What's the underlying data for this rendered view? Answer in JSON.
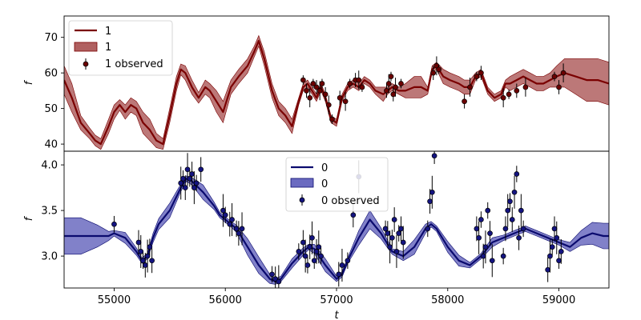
{
  "chart_data": [
    {
      "type": "line",
      "panel": "top",
      "xlabel": "",
      "ylabel": "f",
      "xlim": [
        54550,
        59450
      ],
      "ylim": [
        38,
        76
      ],
      "x_tick_labels_shown": false,
      "y_ticks": [
        40,
        50,
        60,
        70
      ],
      "y_tick_labels": [
        "40",
        "50",
        "60",
        "70"
      ],
      "grid": false,
      "legend_position": "top-left",
      "legend": {
        "line": "1",
        "band": "1",
        "observed": "1 observed"
      },
      "colors": {
        "line": "#7a0000",
        "band": "#b06060",
        "points": "#6b0000"
      },
      "series": [
        {
          "name": "1",
          "role": "model",
          "x": [
            54550,
            54620,
            54700,
            54780,
            54830,
            54880,
            54950,
            55000,
            55050,
            55100,
            55150,
            55200,
            55260,
            55320,
            55380,
            55440,
            55500,
            55560,
            55600,
            55640,
            55700,
            55760,
            55820,
            55860,
            55920,
            55980,
            56050,
            56120,
            56200,
            56260,
            56300,
            56350,
            56420,
            56480,
            56540,
            56600,
            56660,
            56700,
            56740,
            56780,
            56820,
            56860,
            56900,
            56950,
            57000,
            57050,
            57100,
            57150,
            57200,
            57250,
            57300,
            57350,
            57420,
            57460,
            57500,
            57560,
            57620,
            57700,
            57760,
            57820,
            57860,
            57900,
            57960,
            58020,
            58100,
            58150,
            58200,
            58250,
            58300,
            58360,
            58420,
            58480,
            58520,
            58560,
            58620,
            58680,
            58740,
            58800,
            58860,
            58920,
            58980,
            59050,
            59150,
            59250,
            59350,
            59450
          ],
          "y": [
            58,
            53,
            46,
            43,
            41,
            40,
            45,
            49,
            51,
            49,
            51,
            50,
            46,
            44,
            41,
            40,
            48,
            57,
            61,
            60,
            56,
            53,
            56,
            55,
            52,
            49,
            56,
            59,
            62,
            66,
            69,
            64,
            55,
            50,
            48,
            45,
            52,
            56,
            57,
            55,
            53,
            56,
            53,
            47,
            46,
            53,
            56,
            57,
            56,
            58,
            57,
            55,
            54,
            55,
            56,
            55,
            55,
            56,
            56,
            55,
            61,
            62,
            59,
            58,
            57,
            56,
            56,
            59,
            60,
            55,
            53,
            54,
            57,
            57,
            58,
            59,
            58,
            57,
            57,
            58,
            59,
            60,
            59,
            58,
            58,
            57
          ],
          "band_halfwidth": [
            4,
            4,
            2,
            1.5,
            1.5,
            1.5,
            2,
            2,
            1.5,
            2,
            2,
            2,
            3,
            3,
            2,
            1.5,
            2,
            2,
            1.5,
            2,
            2,
            1.5,
            2,
            2,
            3,
            3,
            2,
            2,
            2,
            1.5,
            1.5,
            2,
            2,
            2,
            2,
            2,
            1,
            1,
            1,
            1,
            1,
            1,
            1,
            1,
            1,
            1,
            1,
            1,
            1,
            1,
            1,
            1,
            2,
            1,
            1,
            1,
            2,
            3,
            3,
            1,
            1,
            1,
            2,
            2,
            2,
            2,
            2,
            1,
            1,
            1,
            1,
            1,
            1,
            2,
            2,
            2,
            2,
            2,
            2,
            2,
            3,
            4,
            5,
            6,
            6,
            6
          ]
        },
        {
          "name": "1 observed",
          "role": "observed",
          "x": [
            56700,
            56730,
            56760,
            56790,
            56820,
            56850,
            56870,
            56900,
            56930,
            56960,
            57030,
            57080,
            57120,
            57170,
            57200,
            57230,
            57450,
            57470,
            57490,
            57510,
            57530,
            57580,
            57870,
            57900,
            57920,
            58150,
            58200,
            58260,
            58300,
            58500,
            58550,
            58620,
            58700,
            58960,
            59000,
            59040
          ],
          "y": [
            58,
            55,
            53,
            57,
            56,
            55,
            57,
            54,
            51,
            47,
            53,
            52,
            57,
            58,
            58,
            56,
            55,
            57,
            59,
            54,
            56,
            57,
            60,
            62,
            61,
            52,
            56,
            59,
            60,
            53,
            54,
            55,
            56,
            59,
            56,
            60
          ]
        }
      ]
    },
    {
      "type": "line",
      "panel": "bottom",
      "xlabel": "t",
      "ylabel": "f",
      "xlim": [
        54550,
        59450
      ],
      "ylim": [
        2.65,
        4.15
      ],
      "x_ticks": [
        55000,
        56000,
        57000,
        58000,
        59000
      ],
      "x_tick_labels": [
        "55000",
        "56000",
        "57000",
        "58000",
        "59000"
      ],
      "y_ticks": [
        3.0,
        3.5,
        4.0
      ],
      "y_tick_labels": [
        "3.0",
        "3.5",
        "4.0"
      ],
      "grid": false,
      "legend_position": "top-center",
      "legend": {
        "line": "0",
        "band": "0",
        "observed": "0 observed"
      },
      "colors": {
        "line": "#0a0a6e",
        "band": "#6b6bc0",
        "points": "#141480"
      },
      "series": [
        {
          "name": "0",
          "role": "model",
          "x": [
            54550,
            54700,
            54850,
            54950,
            55000,
            55100,
            55200,
            55250,
            55300,
            55350,
            55400,
            55500,
            55600,
            55650,
            55700,
            55800,
            55900,
            55950,
            56000,
            56050,
            56100,
            56200,
            56300,
            56400,
            56450,
            56500,
            56600,
            56700,
            56750,
            56800,
            56900,
            57000,
            57050,
            57100,
            57200,
            57300,
            57400,
            57500,
            57600,
            57700,
            57800,
            57850,
            57900,
            58000,
            58100,
            58200,
            58300,
            58400,
            58500,
            58600,
            58700,
            58800,
            58900,
            59000,
            59100,
            59200,
            59300,
            59400,
            59450
          ],
          "y": [
            3.22,
            3.22,
            3.22,
            3.22,
            3.25,
            3.2,
            3.05,
            2.95,
            3.0,
            3.2,
            3.35,
            3.5,
            3.75,
            3.85,
            3.82,
            3.7,
            3.55,
            3.45,
            3.4,
            3.35,
            3.3,
            3.1,
            2.9,
            2.75,
            2.72,
            2.75,
            2.92,
            3.05,
            3.1,
            3.08,
            2.9,
            2.75,
            2.8,
            2.95,
            3.2,
            3.4,
            3.25,
            3.05,
            3.0,
            3.1,
            3.3,
            3.35,
            3.3,
            3.1,
            2.95,
            2.9,
            3.0,
            3.15,
            3.2,
            3.25,
            3.3,
            3.25,
            3.2,
            3.15,
            3.1,
            3.2,
            3.25,
            3.22,
            3.22
          ],
          "band_halfwidth": [
            0.2,
            0.2,
            0.12,
            0.05,
            0.03,
            0.06,
            0.04,
            0.03,
            0.03,
            0.05,
            0.06,
            0.08,
            0.04,
            0.03,
            0.04,
            0.08,
            0.04,
            0.03,
            0.03,
            0.03,
            0.04,
            0.09,
            0.09,
            0.05,
            0.03,
            0.03,
            0.05,
            0.04,
            0.03,
            0.05,
            0.07,
            0.03,
            0.03,
            0.03,
            0.08,
            0.1,
            0.06,
            0.03,
            0.05,
            0.08,
            0.05,
            0.03,
            0.03,
            0.06,
            0.06,
            0.03,
            0.03,
            0.05,
            0.03,
            0.03,
            0.03,
            0.03,
            0.03,
            0.03,
            0.05,
            0.08,
            0.12,
            0.14,
            0.14
          ]
        },
        {
          "name": "0 observed",
          "role": "observed",
          "x": [
            55000,
            55220,
            55240,
            55260,
            55280,
            55300,
            55320,
            55340,
            55600,
            55620,
            55640,
            55660,
            55680,
            55700,
            55720,
            55740,
            55780,
            55980,
            56000,
            56040,
            56060,
            56100,
            56120,
            56150,
            56420,
            56450,
            56480,
            56660,
            56700,
            56720,
            56740,
            56760,
            56780,
            56800,
            56820,
            56840,
            56860,
            57020,
            57050,
            57100,
            57150,
            57200,
            57440,
            57460,
            57480,
            57500,
            57520,
            57540,
            57560,
            57580,
            57600,
            57820,
            57840,
            57860,
            57880,
            58260,
            58280,
            58300,
            58320,
            58340,
            58360,
            58380,
            58400,
            58500,
            58520,
            58540,
            58560,
            58580,
            58600,
            58620,
            58640,
            58660,
            58680,
            58900,
            58920,
            58940,
            58960,
            58980,
            59000,
            59020
          ],
          "y": [
            3.35,
            3.15,
            3.05,
            2.95,
            2.9,
            3.0,
            3.1,
            2.95,
            3.8,
            3.85,
            3.75,
            3.95,
            3.85,
            3.9,
            3.75,
            3.8,
            3.95,
            3.5,
            3.45,
            3.35,
            3.4,
            3.3,
            3.25,
            3.3,
            2.8,
            2.75,
            2.72,
            3.05,
            3.15,
            3.0,
            2.9,
            3.1,
            3.2,
            2.95,
            3.05,
            3.1,
            3.0,
            2.8,
            2.9,
            2.95,
            3.45,
            3.87,
            3.3,
            3.25,
            3.1,
            3.2,
            3.4,
            3.05,
            3.25,
            3.3,
            3.15,
            3.3,
            3.6,
            3.7,
            4.1,
            3.3,
            3.2,
            3.4,
            3.0,
            3.1,
            3.5,
            3.25,
            2.95,
            3.0,
            3.3,
            3.5,
            3.6,
            3.4,
            3.7,
            3.9,
            3.2,
            3.5,
            3.3,
            2.85,
            3.0,
            3.1,
            3.3,
            3.2,
            2.95,
            3.05
          ]
        }
      ]
    }
  ]
}
